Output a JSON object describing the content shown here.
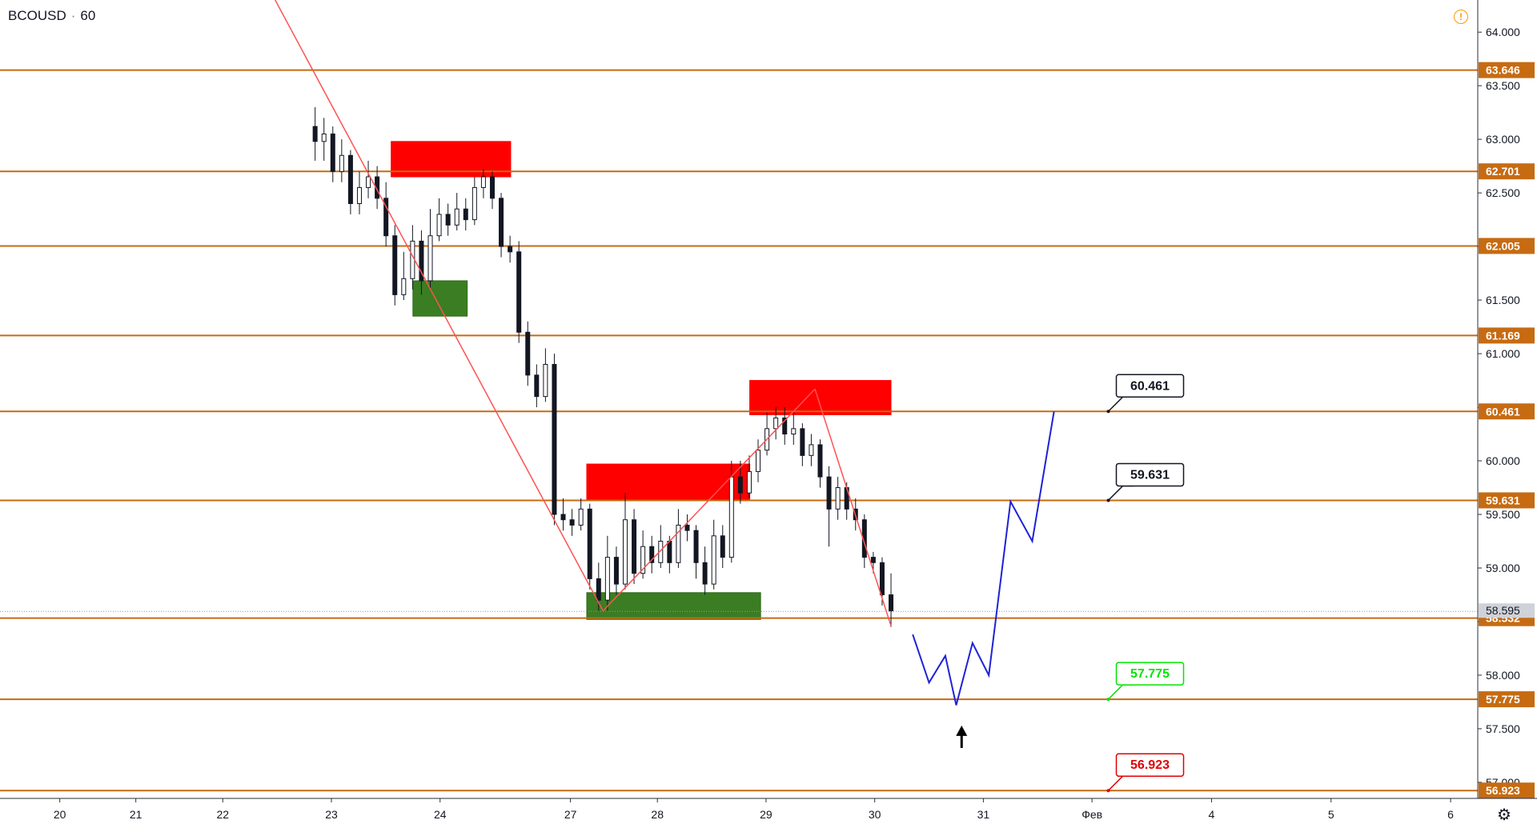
{
  "header": {
    "symbol": "BCOUSD",
    "interval": "60"
  },
  "icons": {
    "warning": "warning-icon",
    "settings": "gear-icon"
  },
  "colors": {
    "level_line": "#c66b12",
    "trend_line": "#ff5252",
    "forecast": "#1e22d6",
    "resistance_zone": "#ff0000",
    "support_zone": "#3a7d22",
    "bull_candle": "#ffffff",
    "bear_candle": "#131722"
  },
  "chart_data": {
    "type": "candlestick",
    "ylim": [
      56.85,
      64.3
    ],
    "y_ticks": [
      "64.000",
      "63.500",
      "63.000",
      "62.500",
      "62.000",
      "61.500",
      "61.000",
      "60.500",
      "60.000",
      "59.500",
      "59.000",
      "58.500",
      "58.000",
      "57.500",
      "57.000"
    ],
    "x_ticks": [
      "20",
      "21",
      "22",
      "23",
      "24",
      "27",
      "28",
      "29",
      "30",
      "31",
      "Фев",
      "4",
      "5",
      "6"
    ],
    "x_tick_index": [
      -52.5,
      -45.5,
      -37.5,
      -27.5,
      -17.5,
      -5.5,
      2.5,
      12.5,
      22.5,
      32.5,
      42.5,
      53.5,
      64.5,
      75.5
    ],
    "x_range": [
      -58,
      78
    ],
    "current_price": "58.595",
    "levels": [
      "63.646",
      "62.701",
      "62.005",
      "61.169",
      "60.461",
      "59.631",
      "58.532",
      "57.775",
      "56.923"
    ],
    "callouts": [
      {
        "label": "60.461",
        "value": 60.461,
        "x": 44,
        "color": "#131722"
      },
      {
        "label": "59.631",
        "value": 59.631,
        "x": 44,
        "color": "#131722"
      },
      {
        "label": "57.775",
        "value": 57.775,
        "x": 44,
        "color": "#00e600"
      },
      {
        "label": "56.923",
        "value": 56.923,
        "x": 44,
        "color": "#e00000"
      }
    ],
    "zones": [
      {
        "kind": "resistance",
        "x0": -22,
        "x1": -11,
        "y0": 62.65,
        "y1": 62.98
      },
      {
        "kind": "support",
        "x0": -20,
        "x1": -15,
        "y0": 61.35,
        "y1": 61.68
      },
      {
        "kind": "resistance",
        "x0": -4,
        "x1": 11,
        "y0": 59.63,
        "y1": 59.97
      },
      {
        "kind": "support",
        "x0": -4,
        "x1": 12,
        "y0": 58.52,
        "y1": 58.77
      },
      {
        "kind": "resistance",
        "x0": 11,
        "x1": 24,
        "y0": 60.43,
        "y1": 60.75
      }
    ],
    "trend_lines": [
      [
        [
          -34,
          64.55
        ],
        [
          -2.5,
          58.6
        ]
      ],
      [
        [
          -2.5,
          58.6
        ],
        [
          17,
          60.67
        ]
      ],
      [
        [
          17,
          60.67
        ],
        [
          24,
          58.46
        ]
      ]
    ],
    "forecast_path": [
      [
        26,
        58.38
      ],
      [
        27.5,
        57.93
      ],
      [
        29,
        58.18
      ],
      [
        30,
        57.72
      ],
      [
        31.5,
        58.3
      ],
      [
        33,
        58.0
      ],
      [
        35,
        59.62
      ],
      [
        37,
        59.25
      ],
      [
        39,
        60.46
      ]
    ],
    "arrow": {
      "x": 30.5,
      "y": 57.5
    },
    "candles": [
      [
        63.12,
        62.98,
        63.3,
        62.8
      ],
      [
        62.98,
        63.05,
        63.2,
        62.8
      ],
      [
        63.05,
        62.7,
        63.12,
        62.6
      ],
      [
        62.7,
        62.85,
        63.0,
        62.6
      ],
      [
        62.85,
        62.4,
        62.9,
        62.3
      ],
      [
        62.4,
        62.55,
        62.7,
        62.3
      ],
      [
        62.55,
        62.65,
        62.8,
        62.45
      ],
      [
        62.65,
        62.45,
        62.75,
        62.35
      ],
      [
        62.45,
        62.1,
        62.6,
        62.0
      ],
      [
        62.1,
        61.55,
        62.2,
        61.45
      ],
      [
        61.55,
        61.7,
        61.95,
        61.5
      ],
      [
        61.7,
        62.05,
        62.2,
        61.6
      ],
      [
        62.05,
        61.68,
        62.15,
        61.55
      ],
      [
        61.68,
        62.1,
        62.35,
        61.6
      ],
      [
        62.1,
        62.3,
        62.45,
        62.05
      ],
      [
        62.3,
        62.2,
        62.4,
        62.1
      ],
      [
        62.2,
        62.35,
        62.5,
        62.15
      ],
      [
        62.35,
        62.25,
        62.45,
        62.15
      ],
      [
        62.25,
        62.55,
        62.65,
        62.2
      ],
      [
        62.55,
        62.65,
        62.72,
        62.45
      ],
      [
        62.65,
        62.45,
        62.7,
        62.35
      ],
      [
        62.45,
        62.0,
        62.5,
        61.9
      ],
      [
        62.0,
        61.95,
        62.1,
        61.85
      ],
      [
        61.95,
        61.2,
        62.05,
        61.1
      ],
      [
        61.2,
        60.8,
        61.3,
        60.7
      ],
      [
        60.8,
        60.6,
        60.9,
        60.5
      ],
      [
        60.6,
        60.9,
        61.05,
        60.55
      ],
      [
        60.9,
        59.5,
        61.0,
        59.4
      ],
      [
        59.5,
        59.45,
        59.65,
        59.35
      ],
      [
        59.45,
        59.4,
        59.55,
        59.3
      ],
      [
        59.4,
        59.55,
        59.65,
        59.35
      ],
      [
        59.55,
        58.9,
        59.6,
        58.8
      ],
      [
        58.9,
        58.7,
        59.05,
        58.6
      ],
      [
        58.7,
        59.1,
        59.3,
        58.6
      ],
      [
        59.1,
        58.85,
        59.2,
        58.75
      ],
      [
        58.85,
        59.45,
        59.7,
        58.8
      ],
      [
        59.45,
        58.95,
        59.55,
        58.85
      ],
      [
        58.95,
        59.2,
        59.35,
        58.9
      ],
      [
        59.2,
        59.05,
        59.3,
        58.95
      ],
      [
        59.05,
        59.25,
        59.4,
        59.0
      ],
      [
        59.25,
        59.05,
        59.3,
        58.95
      ],
      [
        59.05,
        59.4,
        59.55,
        59.0
      ],
      [
        59.4,
        59.35,
        59.5,
        59.25
      ],
      [
        59.35,
        59.05,
        59.4,
        58.9
      ],
      [
        59.05,
        58.85,
        59.2,
        58.75
      ],
      [
        58.85,
        59.3,
        59.45,
        58.8
      ],
      [
        59.3,
        59.1,
        59.4,
        59.0
      ],
      [
        59.1,
        59.85,
        60.0,
        59.05
      ],
      [
        59.85,
        59.7,
        60.0,
        59.6
      ],
      [
        59.7,
        59.9,
        60.05,
        59.65
      ],
      [
        59.9,
        60.1,
        60.2,
        59.8
      ],
      [
        60.1,
        60.3,
        60.45,
        60.05
      ],
      [
        60.3,
        60.4,
        60.5,
        60.2
      ],
      [
        60.4,
        60.25,
        60.5,
        60.15
      ],
      [
        60.25,
        60.3,
        60.45,
        60.15
      ],
      [
        60.3,
        60.05,
        60.35,
        59.95
      ],
      [
        60.05,
        60.15,
        60.25,
        59.95
      ],
      [
        60.15,
        59.85,
        60.2,
        59.75
      ],
      [
        59.85,
        59.55,
        59.95,
        59.2
      ],
      [
        59.55,
        59.75,
        59.85,
        59.45
      ],
      [
        59.75,
        59.55,
        59.8,
        59.45
      ],
      [
        59.55,
        59.45,
        59.65,
        59.35
      ],
      [
        59.45,
        59.1,
        59.5,
        59.0
      ],
      [
        59.1,
        59.05,
        59.15,
        58.95
      ],
      [
        59.05,
        58.75,
        59.1,
        58.65
      ],
      [
        58.75,
        58.6,
        58.95,
        58.45
      ]
    ]
  }
}
